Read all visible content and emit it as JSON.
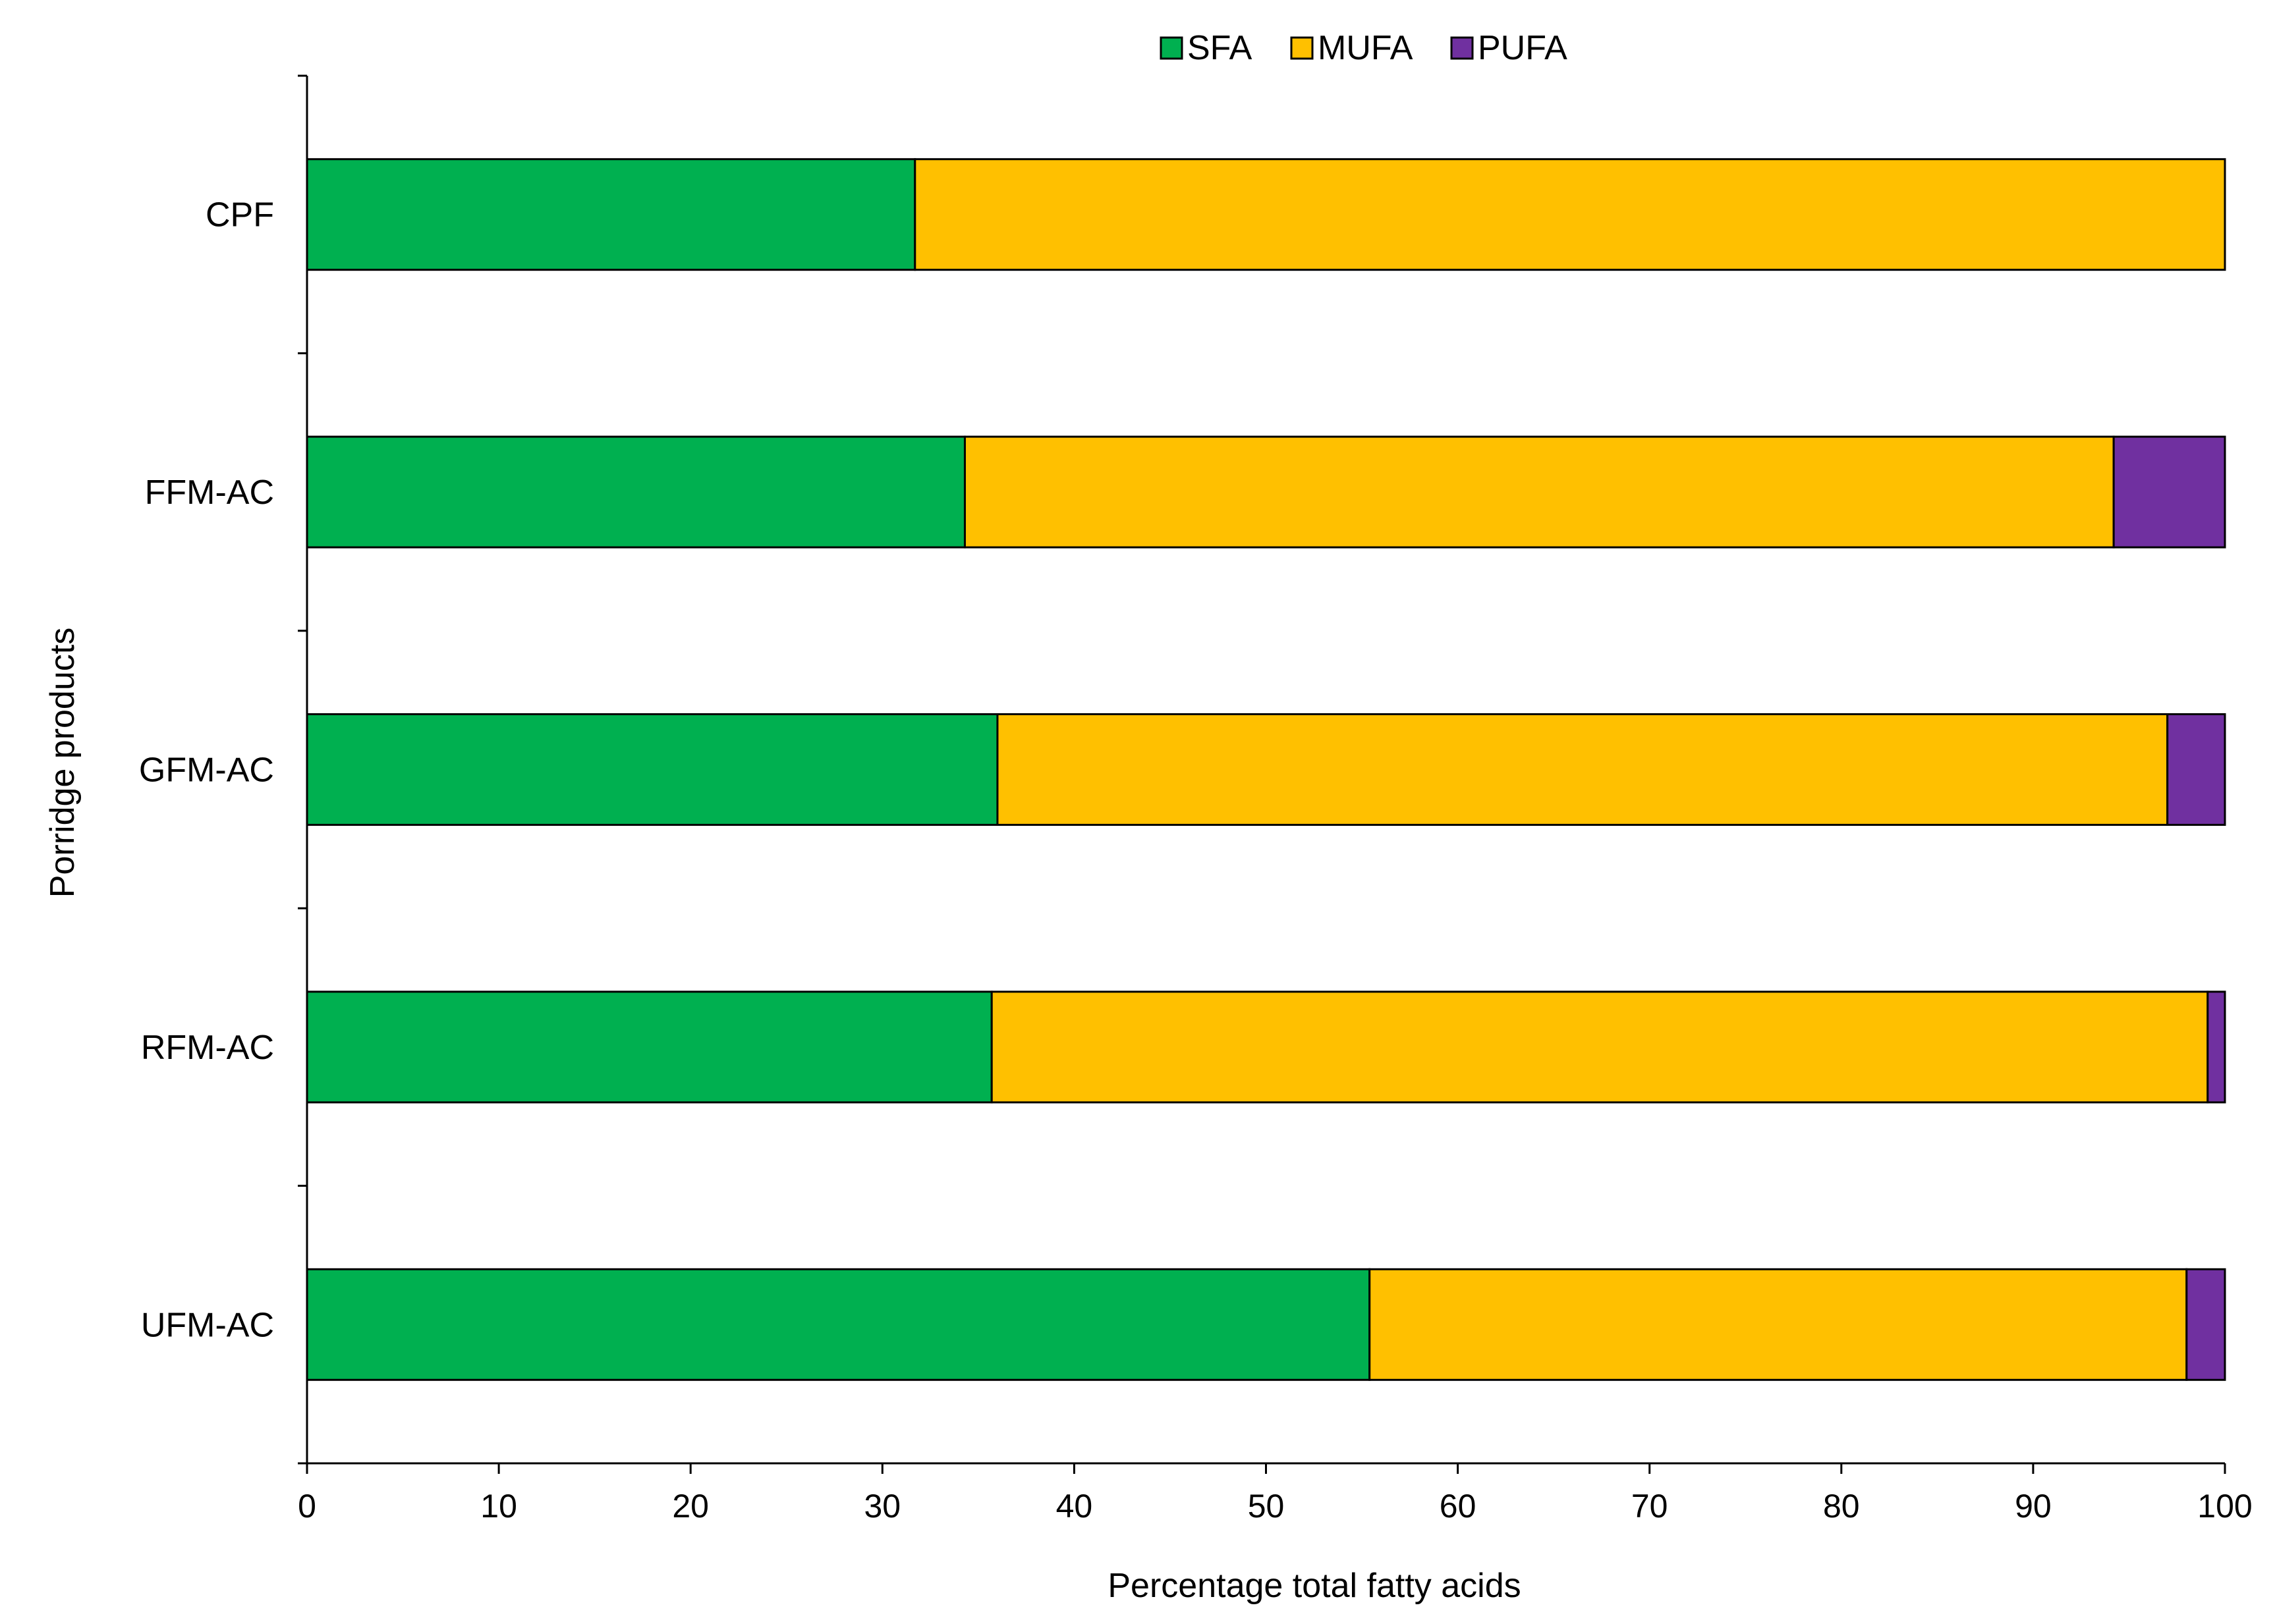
{
  "chart_data": {
    "type": "bar",
    "orientation": "horizontal",
    "stacked": true,
    "title": "",
    "xlabel": "Percentage total fatty acids",
    "ylabel": "Porridge products",
    "xlim": [
      0,
      100
    ],
    "xticks": [
      0,
      10,
      20,
      30,
      40,
      50,
      60,
      70,
      80,
      90,
      100
    ],
    "grid": false,
    "legend_position": "top-center",
    "categories": [
      "CPF",
      "FFM-AC",
      "GFM-AC",
      "RFM-AC",
      "UFM-AC"
    ],
    "series": [
      {
        "name": "SFA",
        "color": "#00b050",
        "values": [
          31.7,
          34.3,
          36.0,
          35.7,
          55.4
        ]
      },
      {
        "name": "MUFA",
        "color": "#ffc000",
        "values": [
          68.3,
          59.9,
          61.0,
          63.4,
          42.6
        ]
      },
      {
        "name": "PUFA",
        "color": "#7030a0",
        "values": [
          0.0,
          5.8,
          3.0,
          0.9,
          2.0
        ]
      }
    ]
  }
}
